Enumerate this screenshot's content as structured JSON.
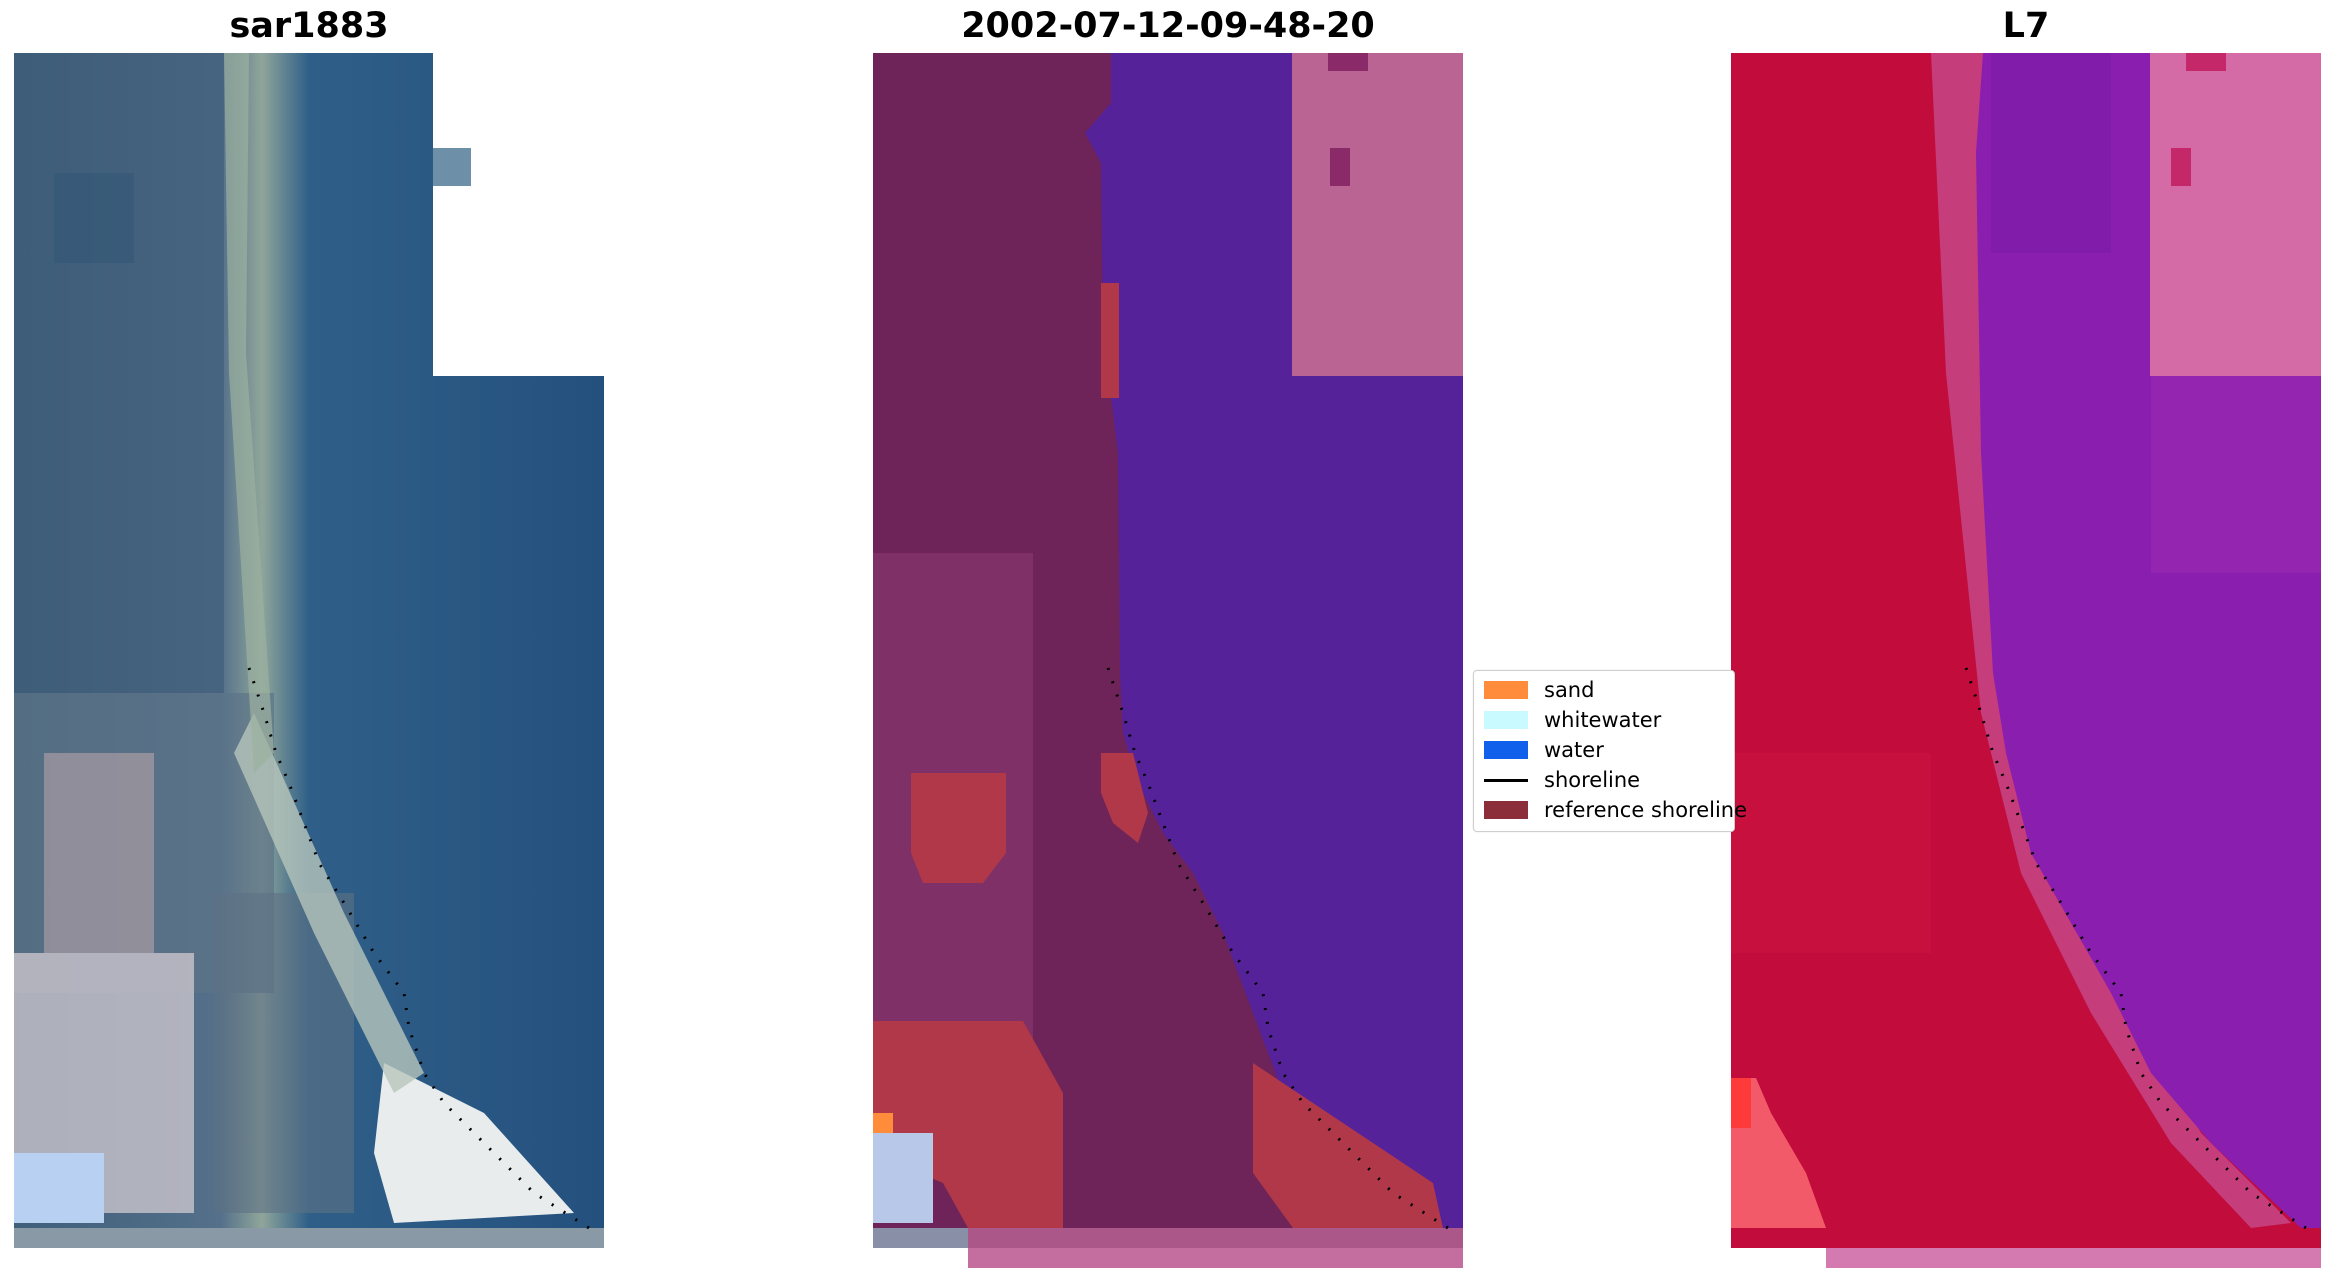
{
  "panels": [
    {
      "title": "sar1883"
    },
    {
      "title": "2002-07-12-09-48-20"
    },
    {
      "title": "L7"
    }
  ],
  "legend": {
    "items": [
      {
        "label": "sand",
        "color": "#ff8c3a",
        "kind": "patch"
      },
      {
        "label": "whitewater",
        "color": "#c8faff",
        "kind": "patch"
      },
      {
        "label": "water",
        "color": "#1060ec",
        "kind": "patch"
      },
      {
        "label": "shoreline",
        "color": "#000000",
        "kind": "line"
      },
      {
        "label": "reference shoreline",
        "color": "#8b2e3a",
        "kind": "patch"
      }
    ]
  },
  "colors": {
    "rgb_water": "#2a5a86",
    "rgb_land": "#4a6a84",
    "class_water": "#55229a",
    "class_land": "#6e2458",
    "class_sand": "#b03848",
    "class_nodata": "#b96492",
    "ndwi_land": "#c20c3c",
    "ndwi_water": "#8a1eae"
  }
}
